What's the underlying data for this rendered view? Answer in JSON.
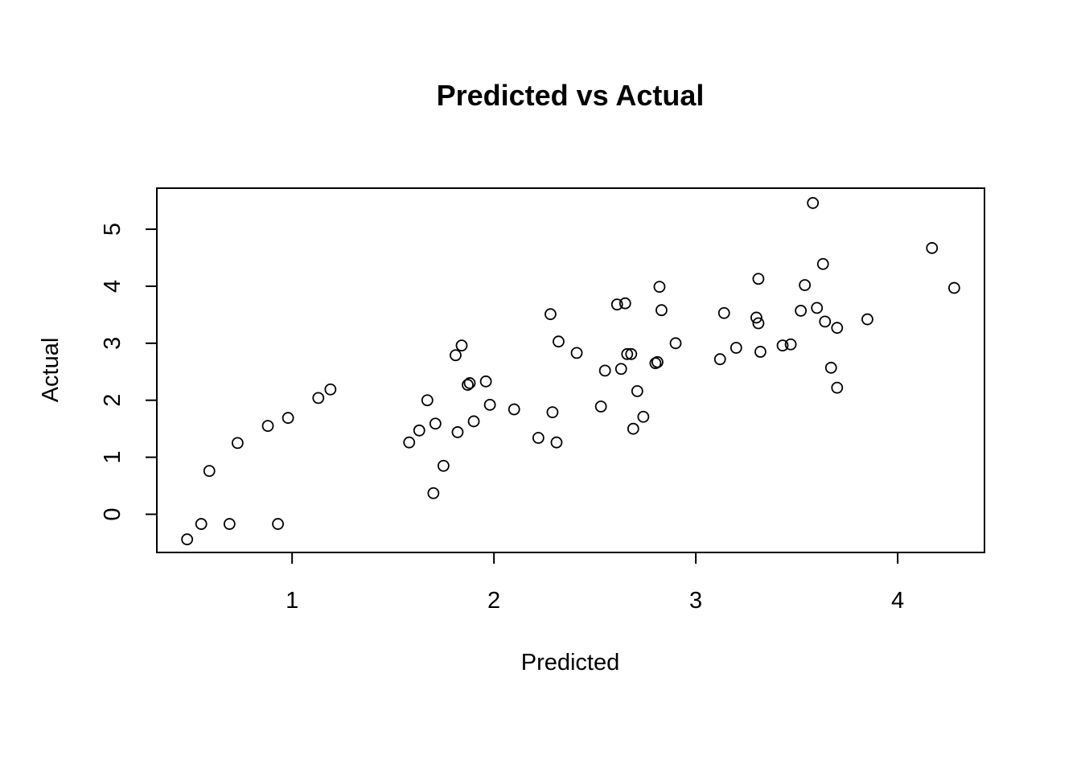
{
  "chart_data": {
    "type": "scatter",
    "title": "Predicted vs Actual",
    "xlabel": "Predicted",
    "ylabel": "Actual",
    "xlim": [
      0.33,
      4.43
    ],
    "ylim": [
      -0.67,
      5.72
    ],
    "xticks": [
      1,
      2,
      3,
      4
    ],
    "yticks": [
      0,
      1,
      2,
      3,
      4,
      5
    ],
    "grid": false,
    "legend": "none",
    "marker": "open-circle",
    "colors": {
      "point": "#000000",
      "background": "#ffffff"
    },
    "points": [
      {
        "x": 0.48,
        "y": -0.44
      },
      {
        "x": 0.55,
        "y": -0.17
      },
      {
        "x": 0.59,
        "y": 0.76
      },
      {
        "x": 0.69,
        "y": -0.17
      },
      {
        "x": 0.73,
        "y": 1.25
      },
      {
        "x": 0.88,
        "y": 1.55
      },
      {
        "x": 0.93,
        "y": -0.17
      },
      {
        "x": 0.98,
        "y": 1.69
      },
      {
        "x": 1.13,
        "y": 2.04
      },
      {
        "x": 1.19,
        "y": 2.19
      },
      {
        "x": 1.58,
        "y": 1.26
      },
      {
        "x": 1.63,
        "y": 1.47
      },
      {
        "x": 1.67,
        "y": 2.0
      },
      {
        "x": 1.7,
        "y": 0.37
      },
      {
        "x": 1.71,
        "y": 1.59
      },
      {
        "x": 1.75,
        "y": 0.85
      },
      {
        "x": 1.81,
        "y": 2.79
      },
      {
        "x": 1.82,
        "y": 1.44
      },
      {
        "x": 1.84,
        "y": 2.96
      },
      {
        "x": 1.87,
        "y": 2.27
      },
      {
        "x": 1.88,
        "y": 2.3
      },
      {
        "x": 1.9,
        "y": 1.63
      },
      {
        "x": 1.96,
        "y": 2.33
      },
      {
        "x": 1.98,
        "y": 1.92
      },
      {
        "x": 2.1,
        "y": 1.84
      },
      {
        "x": 2.22,
        "y": 1.34
      },
      {
        "x": 2.28,
        "y": 3.51
      },
      {
        "x": 2.29,
        "y": 1.79
      },
      {
        "x": 2.31,
        "y": 1.26
      },
      {
        "x": 2.32,
        "y": 3.03
      },
      {
        "x": 2.41,
        "y": 2.83
      },
      {
        "x": 2.53,
        "y": 1.89
      },
      {
        "x": 2.55,
        "y": 2.52
      },
      {
        "x": 2.61,
        "y": 3.68
      },
      {
        "x": 2.63,
        "y": 2.55
      },
      {
        "x": 2.65,
        "y": 3.7
      },
      {
        "x": 2.66,
        "y": 2.81
      },
      {
        "x": 2.68,
        "y": 2.81
      },
      {
        "x": 2.69,
        "y": 1.5
      },
      {
        "x": 2.71,
        "y": 2.16
      },
      {
        "x": 2.74,
        "y": 1.71
      },
      {
        "x": 2.8,
        "y": 2.65
      },
      {
        "x": 2.81,
        "y": 2.67
      },
      {
        "x": 2.82,
        "y": 3.99
      },
      {
        "x": 2.83,
        "y": 3.58
      },
      {
        "x": 2.9,
        "y": 3.0
      },
      {
        "x": 3.12,
        "y": 2.72
      },
      {
        "x": 3.14,
        "y": 3.53
      },
      {
        "x": 3.2,
        "y": 2.92
      },
      {
        "x": 3.3,
        "y": 3.45
      },
      {
        "x": 3.31,
        "y": 3.35
      },
      {
        "x": 3.31,
        "y": 4.13
      },
      {
        "x": 3.32,
        "y": 2.85
      },
      {
        "x": 3.43,
        "y": 2.96
      },
      {
        "x": 3.47,
        "y": 2.98
      },
      {
        "x": 3.52,
        "y": 3.57
      },
      {
        "x": 3.54,
        "y": 4.02
      },
      {
        "x": 3.58,
        "y": 5.46
      },
      {
        "x": 3.6,
        "y": 3.62
      },
      {
        "x": 3.63,
        "y": 4.39
      },
      {
        "x": 3.64,
        "y": 3.38
      },
      {
        "x": 3.67,
        "y": 2.57
      },
      {
        "x": 3.7,
        "y": 3.27
      },
      {
        "x": 3.7,
        "y": 2.22
      },
      {
        "x": 3.85,
        "y": 3.42
      },
      {
        "x": 4.17,
        "y": 4.67
      },
      {
        "x": 4.28,
        "y": 3.97
      }
    ]
  }
}
